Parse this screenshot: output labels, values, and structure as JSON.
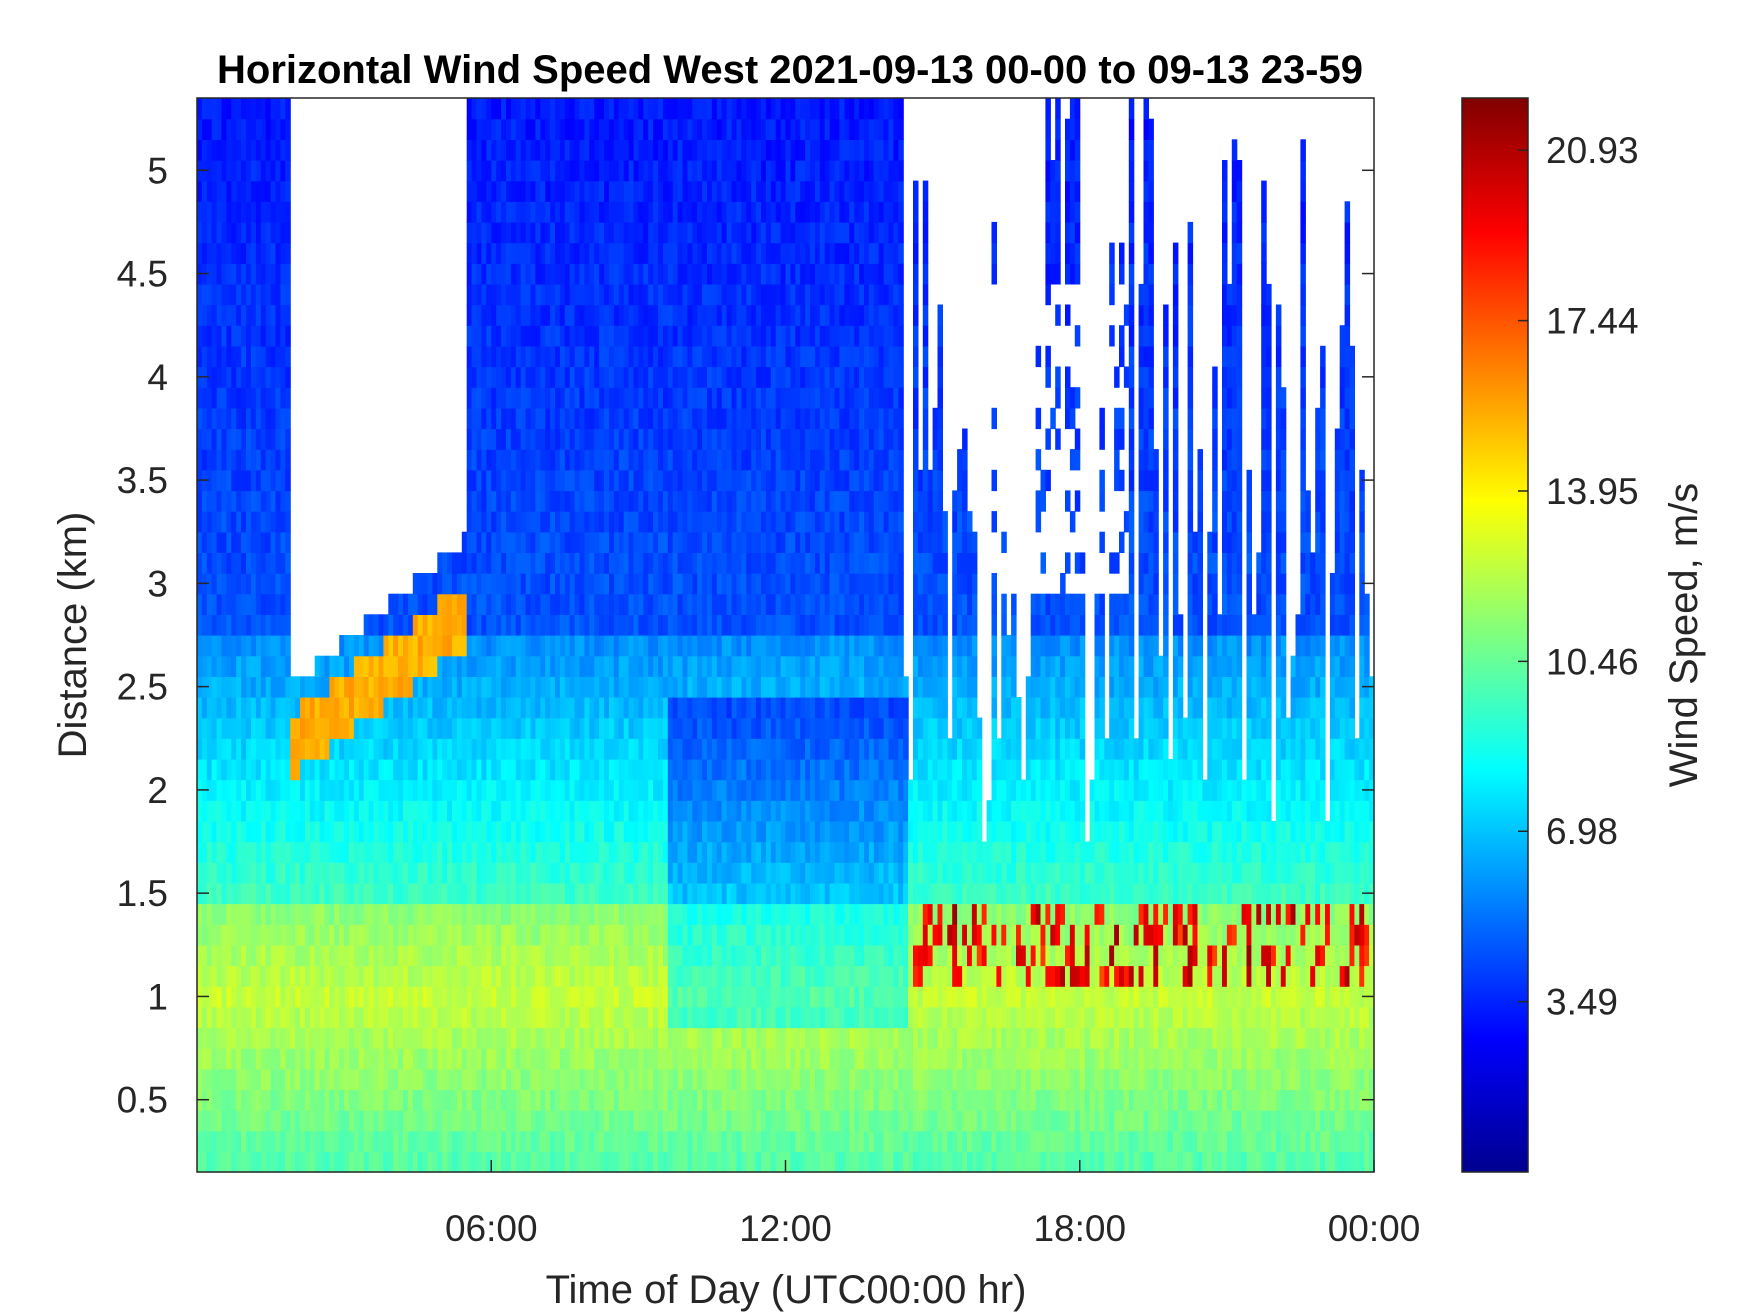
{
  "chart_data": {
    "type": "heatmap",
    "title": "Horizontal Wind Speed West 2021-09-13 00-00 to 09-13 23-59",
    "xlabel": "Time of Day (UTC00:00 hr)",
    "ylabel": "Distance (km)",
    "xlim_hours": [
      0,
      24
    ],
    "ylim_km": [
      0.15,
      5.35
    ],
    "x_ticks": [
      {
        "hour": 6,
        "label": "06:00"
      },
      {
        "hour": 12,
        "label": "12:00"
      },
      {
        "hour": 18,
        "label": "18:00"
      },
      {
        "hour": 24,
        "label": "00:00"
      }
    ],
    "y_ticks": [
      {
        "value": 0.5,
        "label": "0.5"
      },
      {
        "value": 1,
        "label": "1"
      },
      {
        "value": 1.5,
        "label": "1.5"
      },
      {
        "value": 2,
        "label": "2"
      },
      {
        "value": 2.5,
        "label": "2.5"
      },
      {
        "value": 3,
        "label": "3"
      },
      {
        "value": 3.5,
        "label": "3.5"
      },
      {
        "value": 4,
        "label": "4"
      },
      {
        "value": 4.5,
        "label": "4.5"
      },
      {
        "value": 5,
        "label": "5"
      }
    ],
    "colorbar": {
      "label": "Wind Speed, m/s",
      "range": [
        0,
        22.0
      ],
      "colormap": "jet",
      "ticks": [
        {
          "value": 3.49,
          "label": "3.49"
        },
        {
          "value": 6.98,
          "label": "6.98"
        },
        {
          "value": 10.46,
          "label": "10.46"
        },
        {
          "value": 13.95,
          "label": "13.95"
        },
        {
          "value": 17.44,
          "label": "17.44"
        },
        {
          "value": 20.93,
          "label": "20.93"
        }
      ]
    },
    "regions_wind_speed_ms": [
      {
        "name": "low-level layer 0-1.5 km",
        "typical_speed": 10.5
      },
      {
        "name": "mid layer 1.5-2.8 km",
        "typical_speed": 7.5
      },
      {
        "name": "upper layer above 3 km",
        "typical_speed": 3.5
      },
      {
        "name": "jet maximum 01:30-05:30 near 2.1-2.8 km",
        "typical_speed": 15.5
      },
      {
        "name": "afternoon maximum 14:30-24:00 near 1.0-1.5 km",
        "typical_speed": 19.5
      }
    ],
    "missing_data_color": "#ffffff"
  }
}
